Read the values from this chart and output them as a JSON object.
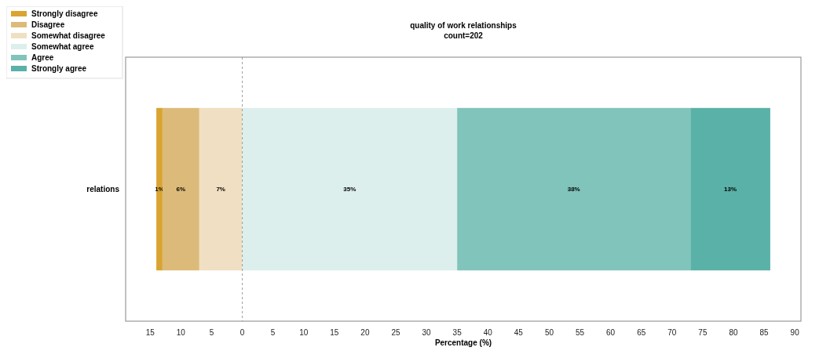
{
  "chart_data": {
    "type": "bar",
    "orientation": "horizontal",
    "title": "quality of work relationships",
    "subtitle": "count=202",
    "xlabel": "Percentage (%)",
    "categories": [
      "relations"
    ],
    "series": [
      {
        "name": "Strongly disagree",
        "color": "#d9a431",
        "base": [
          -14
        ],
        "values": [
          1
        ],
        "value_labels": [
          "1%"
        ]
      },
      {
        "name": "Disagree",
        "color": "#dcbb7a",
        "base": [
          -13
        ],
        "values": [
          6
        ],
        "value_labels": [
          "6%"
        ]
      },
      {
        "name": "Somewhat disagree",
        "color": "#f0dfc2",
        "base": [
          -7
        ],
        "values": [
          7
        ],
        "value_labels": [
          "7%"
        ]
      },
      {
        "name": "Somewhat agree",
        "color": "#dcefec",
        "base": [
          0
        ],
        "values": [
          35
        ],
        "value_labels": [
          "35%"
        ]
      },
      {
        "name": "Agree",
        "color": "#80c4bb",
        "base": [
          35
        ],
        "values": [
          38
        ],
        "value_labels": [
          "38%"
        ]
      },
      {
        "name": "Strongly agree",
        "color": "#5ab1a7",
        "base": [
          73
        ],
        "values": [
          13
        ],
        "value_labels": [
          "13%"
        ]
      }
    ],
    "xlim": [
      -19,
      91
    ],
    "xticks": [
      {
        "value": -15,
        "label": "15"
      },
      {
        "value": -10,
        "label": "10"
      },
      {
        "value": -5,
        "label": "5"
      },
      0,
      5,
      10,
      15,
      20,
      25,
      30,
      35,
      40,
      45,
      50,
      55,
      60,
      65,
      70,
      75,
      80,
      85,
      90
    ],
    "ref_lines": [
      {
        "axis": "x",
        "value": 0,
        "color": "#888888",
        "line_style": "dashed"
      }
    ],
    "legend": "top left",
    "grid": false
  }
}
